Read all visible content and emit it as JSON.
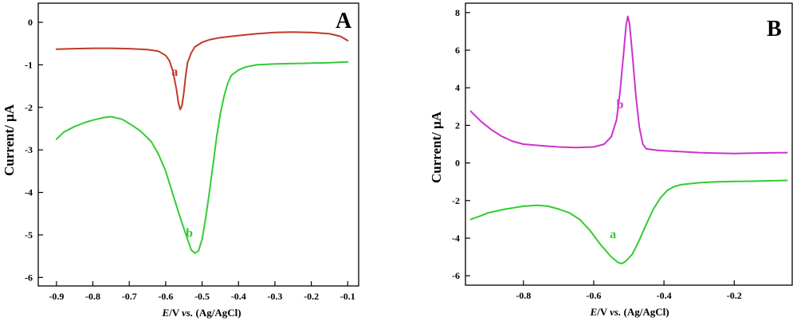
{
  "chart_data": [
    {
      "panel": "A",
      "type": "line",
      "ylabel": "Current/ μA",
      "xlabel": {
        "italic_part": "E",
        "rest": "/V ",
        "vs": "vs.",
        "ref": " (Ag/AgCl)"
      },
      "xlim": [
        -0.95,
        -0.07
      ],
      "ylim": [
        -6.2,
        0.45
      ],
      "xticks": [
        -0.9,
        -0.8,
        -0.7,
        -0.6,
        -0.5,
        -0.4,
        -0.3,
        -0.2,
        -0.1
      ],
      "xtick_labels": [
        "-0.9",
        "-0.8",
        "-0.7",
        "-0.6",
        "-0.5",
        "-0.4",
        "-0.3",
        "-0.2",
        "-0.1"
      ],
      "yticks": [
        0,
        -1,
        -2,
        -3,
        -4,
        -5,
        -6
      ],
      "ytick_labels": [
        "0",
        "-1",
        "-2",
        "-3",
        "-4",
        "-5",
        "-6"
      ],
      "grid": false,
      "series": [
        {
          "name": "a",
          "color": "#c0392b",
          "label_pos": [
            -0.575,
            -1.25
          ],
          "points": [
            [
              -0.9,
              -0.63
            ],
            [
              -0.85,
              -0.62
            ],
            [
              -0.8,
              -0.61
            ],
            [
              -0.75,
              -0.61
            ],
            [
              -0.7,
              -0.62
            ],
            [
              -0.65,
              -0.64
            ],
            [
              -0.62,
              -0.68
            ],
            [
              -0.6,
              -0.78
            ],
            [
              -0.59,
              -0.9
            ],
            [
              -0.58,
              -1.15
            ],
            [
              -0.57,
              -1.6
            ],
            [
              -0.565,
              -1.9
            ],
            [
              -0.56,
              -2.05
            ],
            [
              -0.555,
              -1.95
            ],
            [
              -0.55,
              -1.65
            ],
            [
              -0.545,
              -1.25
            ],
            [
              -0.54,
              -0.95
            ],
            [
              -0.53,
              -0.72
            ],
            [
              -0.52,
              -0.58
            ],
            [
              -0.5,
              -0.47
            ],
            [
              -0.48,
              -0.41
            ],
            [
              -0.45,
              -0.36
            ],
            [
              -0.4,
              -0.31
            ],
            [
              -0.35,
              -0.27
            ],
            [
              -0.3,
              -0.24
            ],
            [
              -0.25,
              -0.23
            ],
            [
              -0.2,
              -0.24
            ],
            [
              -0.15,
              -0.27
            ],
            [
              -0.12,
              -0.33
            ],
            [
              -0.1,
              -0.43
            ]
          ]
        },
        {
          "name": "b",
          "color": "#33cc33",
          "label_pos": [
            -0.535,
            -5.05
          ],
          "points": [
            [
              -0.9,
              -2.75
            ],
            [
              -0.88,
              -2.58
            ],
            [
              -0.85,
              -2.45
            ],
            [
              -0.82,
              -2.35
            ],
            [
              -0.8,
              -2.3
            ],
            [
              -0.77,
              -2.24
            ],
            [
              -0.75,
              -2.22
            ],
            [
              -0.72,
              -2.28
            ],
            [
              -0.7,
              -2.38
            ],
            [
              -0.67,
              -2.55
            ],
            [
              -0.64,
              -2.8
            ],
            [
              -0.62,
              -3.1
            ],
            [
              -0.6,
              -3.5
            ],
            [
              -0.58,
              -4.05
            ],
            [
              -0.56,
              -4.6
            ],
            [
              -0.54,
              -5.1
            ],
            [
              -0.53,
              -5.35
            ],
            [
              -0.52,
              -5.43
            ],
            [
              -0.51,
              -5.38
            ],
            [
              -0.5,
              -5.1
            ],
            [
              -0.49,
              -4.6
            ],
            [
              -0.48,
              -4.0
            ],
            [
              -0.47,
              -3.35
            ],
            [
              -0.46,
              -2.7
            ],
            [
              -0.45,
              -2.15
            ],
            [
              -0.44,
              -1.75
            ],
            [
              -0.43,
              -1.45
            ],
            [
              -0.42,
              -1.25
            ],
            [
              -0.4,
              -1.12
            ],
            [
              -0.38,
              -1.05
            ],
            [
              -0.35,
              -1.0
            ],
            [
              -0.3,
              -0.98
            ],
            [
              -0.25,
              -0.97
            ],
            [
              -0.2,
              -0.96
            ],
            [
              -0.15,
              -0.95
            ],
            [
              -0.1,
              -0.93
            ]
          ]
        }
      ]
    },
    {
      "panel": "B",
      "type": "line",
      "ylabel": "Current/ μA",
      "xlabel": {
        "italic_part": "E",
        "rest": "/V ",
        "vs": "vs.",
        "ref": " (Ag/AgCl)"
      },
      "xlim": [
        -0.965,
        -0.035
      ],
      "ylim": [
        -6.5,
        8.5
      ],
      "xticks": [
        -0.8,
        -0.6,
        -0.4,
        -0.2
      ],
      "xtick_labels": [
        "-0.8",
        "-0.6",
        "-0.4",
        "-0.2"
      ],
      "yticks": [
        8,
        6,
        4,
        2,
        0,
        -2,
        -4,
        -6
      ],
      "ytick_labels": [
        "8",
        "6",
        "4",
        "2",
        "0",
        "-2",
        "-4",
        "-6"
      ],
      "grid": false,
      "series": [
        {
          "name": "b",
          "color": "#cc33cc",
          "label_pos": [
            -0.525,
            2.9
          ],
          "points": [
            [
              -0.95,
              2.75
            ],
            [
              -0.92,
              2.2
            ],
            [
              -0.89,
              1.75
            ],
            [
              -0.86,
              1.4
            ],
            [
              -0.83,
              1.15
            ],
            [
              -0.8,
              1.0
            ],
            [
              -0.75,
              0.92
            ],
            [
              -0.7,
              0.85
            ],
            [
              -0.65,
              0.82
            ],
            [
              -0.6,
              0.85
            ],
            [
              -0.57,
              1.0
            ],
            [
              -0.55,
              1.4
            ],
            [
              -0.535,
              2.3
            ],
            [
              -0.525,
              3.8
            ],
            [
              -0.515,
              5.8
            ],
            [
              -0.508,
              7.3
            ],
            [
              -0.503,
              7.8
            ],
            [
              -0.498,
              7.4
            ],
            [
              -0.49,
              5.8
            ],
            [
              -0.48,
              3.6
            ],
            [
              -0.47,
              1.9
            ],
            [
              -0.46,
              1.0
            ],
            [
              -0.45,
              0.75
            ],
            [
              -0.42,
              0.68
            ],
            [
              -0.4,
              0.65
            ],
            [
              -0.35,
              0.6
            ],
            [
              -0.3,
              0.55
            ],
            [
              -0.25,
              0.52
            ],
            [
              -0.2,
              0.5
            ],
            [
              -0.15,
              0.52
            ],
            [
              -0.1,
              0.54
            ],
            [
              -0.05,
              0.55
            ]
          ]
        },
        {
          "name": "a",
          "color": "#33cc33",
          "label_pos": [
            -0.545,
            -4.0
          ],
          "points": [
            [
              -0.95,
              -3.0
            ],
            [
              -0.92,
              -2.8
            ],
            [
              -0.9,
              -2.65
            ],
            [
              -0.85,
              -2.45
            ],
            [
              -0.8,
              -2.3
            ],
            [
              -0.76,
              -2.25
            ],
            [
              -0.73,
              -2.3
            ],
            [
              -0.7,
              -2.45
            ],
            [
              -0.67,
              -2.65
            ],
            [
              -0.64,
              -3.0
            ],
            [
              -0.61,
              -3.6
            ],
            [
              -0.58,
              -4.35
            ],
            [
              -0.55,
              -5.0
            ],
            [
              -0.53,
              -5.3
            ],
            [
              -0.52,
              -5.35
            ],
            [
              -0.51,
              -5.25
            ],
            [
              -0.49,
              -4.85
            ],
            [
              -0.47,
              -4.1
            ],
            [
              -0.45,
              -3.25
            ],
            [
              -0.43,
              -2.45
            ],
            [
              -0.41,
              -1.85
            ],
            [
              -0.39,
              -1.45
            ],
            [
              -0.37,
              -1.25
            ],
            [
              -0.35,
              -1.15
            ],
            [
              -0.3,
              -1.05
            ],
            [
              -0.25,
              -1.0
            ],
            [
              -0.2,
              -0.98
            ],
            [
              -0.15,
              -0.97
            ],
            [
              -0.1,
              -0.95
            ],
            [
              -0.05,
              -0.93
            ]
          ]
        }
      ]
    }
  ]
}
